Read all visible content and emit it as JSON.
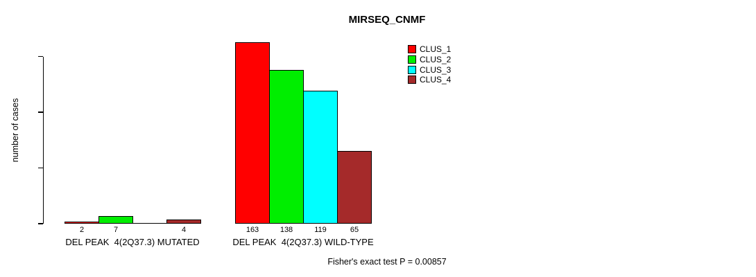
{
  "chart_data": {
    "type": "bar",
    "title": "MIRSEQ_CNMF",
    "ylabel": "number of cases",
    "ylim": [
      0,
      165
    ],
    "yticks": [
      0,
      50,
      100,
      150
    ],
    "grid": false,
    "legend_position": "top-right",
    "categories": [
      "DEL PEAK  4(2Q37.3) MUTATED",
      "DEL PEAK  4(2Q37.3) WILD-TYPE"
    ],
    "series": [
      {
        "name": "CLUS_1",
        "color": "#ff0000",
        "values": [
          2,
          163
        ]
      },
      {
        "name": "CLUS_2",
        "color": "#00ee00",
        "values": [
          7,
          138
        ]
      },
      {
        "name": "CLUS_3",
        "color": "#00ffff",
        "values": [
          0,
          119
        ]
      },
      {
        "name": "CLUS_4",
        "color": "#a52a2a",
        "values": [
          4,
          65
        ]
      }
    ],
    "bar_value_labels": [
      [
        "2",
        "7",
        "",
        "4"
      ],
      [
        "163",
        "138",
        "119",
        "65"
      ]
    ],
    "annotation": "Fisher's exact test P = 0.00857"
  }
}
